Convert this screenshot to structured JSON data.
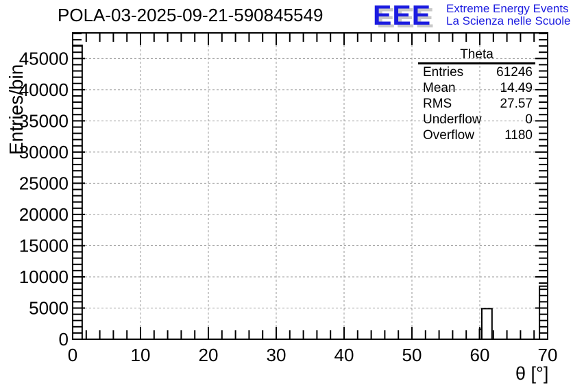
{
  "header": {
    "title": "POLA-03-2025-09-21-590845549"
  },
  "logo": {
    "eee": "EEE",
    "line1": "Extreme Energy Events",
    "line2": "La Scienza nelle Scuole",
    "blue": "#1b1be0",
    "shadow_gray": "#c9c9c9"
  },
  "stats": {
    "header": "Theta",
    "rows": [
      {
        "label": "Entries",
        "value": "61246"
      },
      {
        "label": "Mean",
        "value": "14.49"
      },
      {
        "label": "RMS",
        "value": "27.57"
      },
      {
        "label": "Underflow",
        "value": "0"
      },
      {
        "label": "Overflow",
        "value": "1180"
      }
    ]
  },
  "axes": {
    "y_title": "Entries/bin",
    "x_title": "θ [°]"
  },
  "chart_data": {
    "type": "bar",
    "title": "POLA-03-2025-09-21-590845549",
    "xlabel": "θ [°]",
    "ylabel": "Entries/bin",
    "xlim": [
      0,
      70
    ],
    "ylim": [
      0,
      49100
    ],
    "x_major_step": 10,
    "x_minor_step": 2,
    "y_major_step": 5000,
    "y_minor_step": 1000,
    "grid": true,
    "grid_color": "#999999",
    "grid_style": "dashed",
    "frame_color": "#000000",
    "bar_fill": "#ffffff",
    "bar_stroke": "#000000",
    "x_tick_labels": [
      "0",
      "10",
      "20",
      "30",
      "40",
      "50",
      "60",
      "70"
    ],
    "y_tick_labels": [
      "0",
      "5000",
      "10000",
      "15000",
      "20000",
      "25000",
      "30000",
      "35000",
      "40000",
      "45000"
    ],
    "bins": [
      {
        "x_low": 0.0,
        "x_high": 1.4,
        "count": 47100
      },
      {
        "x_low": 59.95,
        "x_high": 60.3,
        "count": 1600
      },
      {
        "x_low": 60.3,
        "x_high": 61.8,
        "count": 4900
      },
      {
        "x_low": 68.8,
        "x_high": 70.0,
        "count": 8500
      }
    ],
    "stats": {
      "name": "Theta",
      "entries": 61246,
      "mean": 14.49,
      "rms": 27.57,
      "underflow": 0,
      "overflow": 1180
    }
  }
}
